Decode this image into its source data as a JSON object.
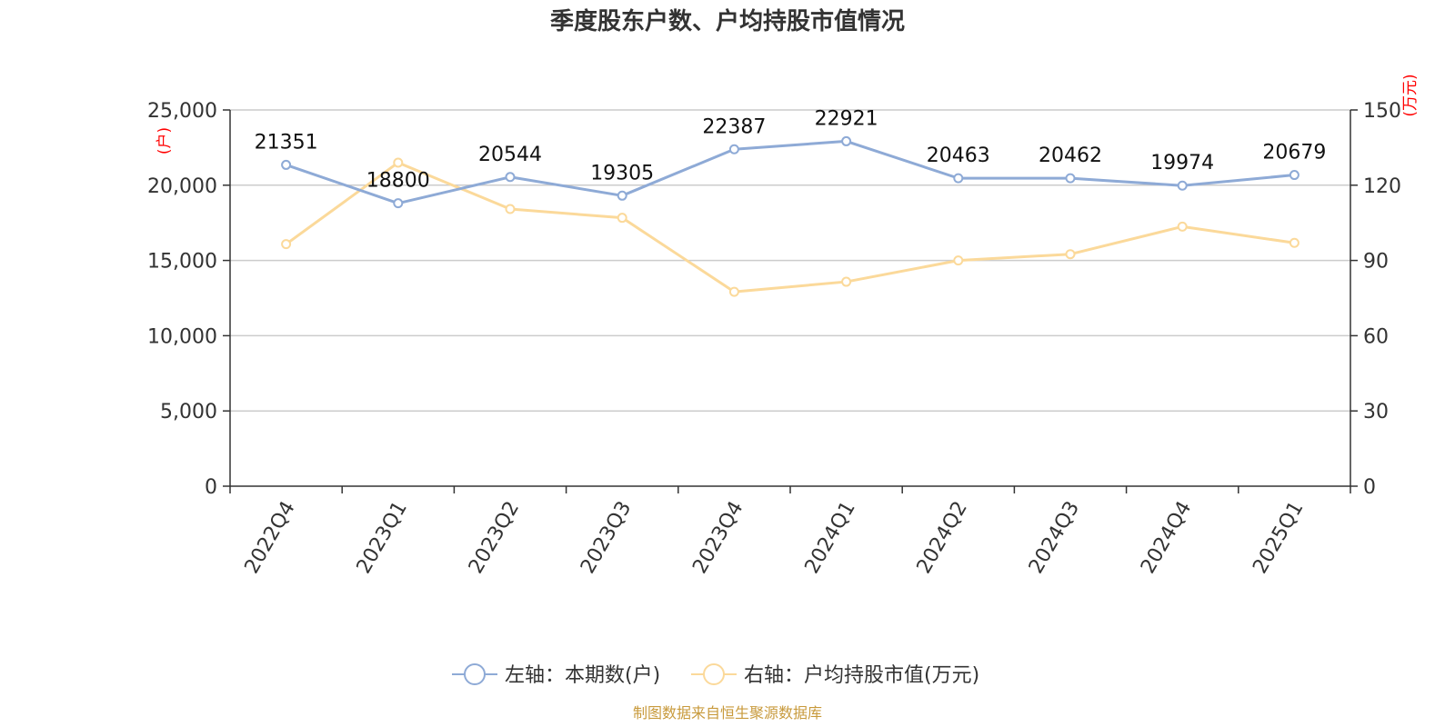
{
  "chart_data": {
    "type": "line",
    "title": "季度股东户数、户均持股市值情况",
    "categories": [
      "2022Q4",
      "2023Q1",
      "2023Q2",
      "2023Q3",
      "2023Q4",
      "2024Q1",
      "2024Q2",
      "2024Q3",
      "2024Q4",
      "2025Q1"
    ],
    "left_axis": {
      "unit": "(户)",
      "ylim": [
        0,
        25000
      ],
      "ticks": [
        0,
        5000,
        10000,
        15000,
        20000,
        25000
      ],
      "tick_labels": [
        "0",
        "5,000",
        "10,000",
        "15,000",
        "20,000",
        "25,000"
      ]
    },
    "right_axis": {
      "unit": "(万元)",
      "ylim": [
        0,
        150
      ],
      "ticks": [
        0,
        30,
        60,
        90,
        120,
        150
      ],
      "tick_labels": [
        "0",
        "30",
        "60",
        "90",
        "120",
        "150"
      ]
    },
    "series": [
      {
        "name": "左轴：本期数(户)",
        "axis": "left",
        "color": "#8eaad6",
        "values": [
          21351,
          18800,
          20544,
          19305,
          22387,
          22921,
          20463,
          20462,
          19974,
          20679
        ],
        "labels": [
          "21351",
          "18800",
          "20544",
          "19305",
          "22387",
          "22921",
          "20463",
          "20462",
          "19974",
          "20679"
        ]
      },
      {
        "name": "右轴：户均持股市值(万元)",
        "axis": "right",
        "color": "#fbd99a",
        "values": [
          96.5,
          129,
          110.5,
          107,
          77.5,
          81.5,
          90,
          92.5,
          103.5,
          97
        ]
      }
    ],
    "grid": true,
    "legend_position": "bottom-center"
  },
  "source_note": "制图数据来自恒生聚源数据库"
}
